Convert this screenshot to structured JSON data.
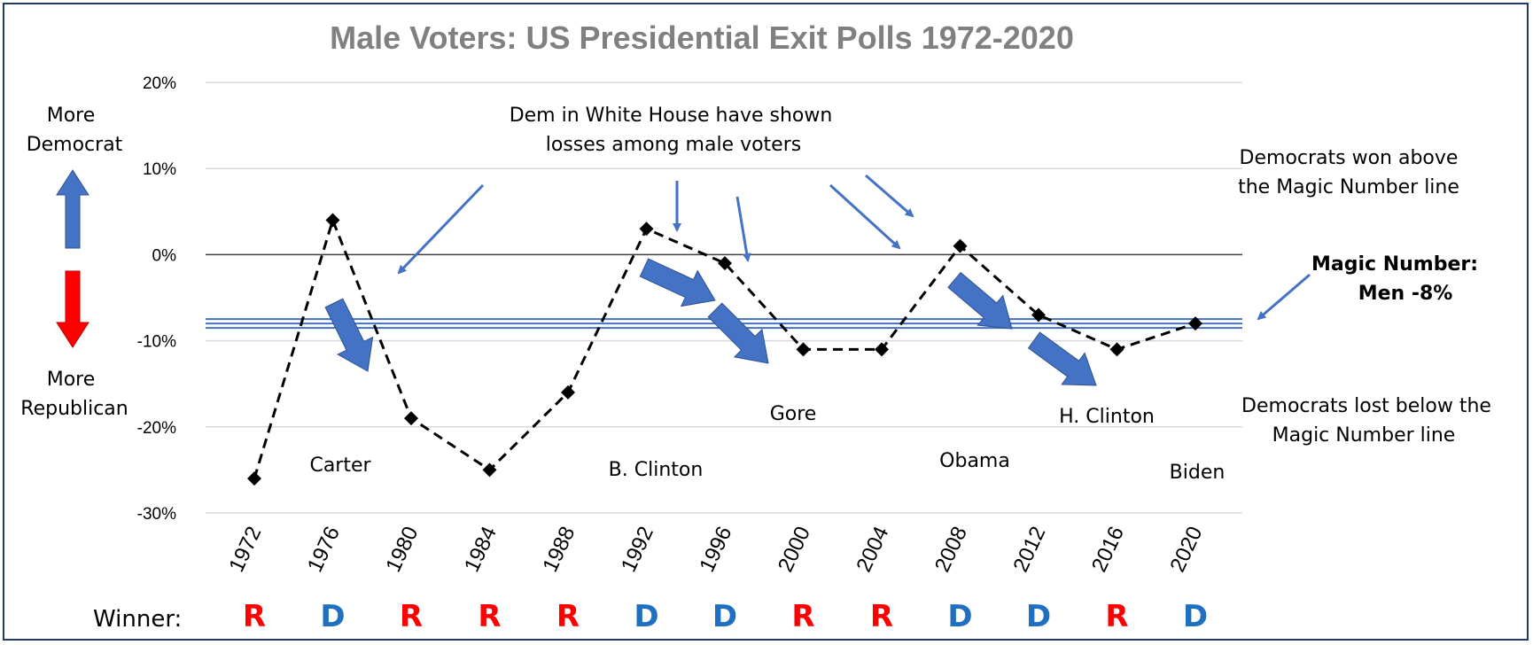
{
  "chart_data": {
    "type": "line",
    "title": "Male Voters: US Presidential Exit Polls 1972-2020",
    "categories": [
      "1972",
      "1976",
      "1980",
      "1984",
      "1988",
      "1992",
      "1996",
      "2000",
      "2004",
      "2008",
      "2012",
      "2016",
      "2020"
    ],
    "series": [
      {
        "values": [
          -26,
          4,
          -19,
          -25,
          -16,
          3,
          -1,
          -11,
          -11,
          1,
          -7,
          -11,
          -8
        ]
      }
    ],
    "ylim": [
      -30,
      20
    ],
    "yticks": [
      20,
      10,
      0,
      -10,
      -20,
      -30
    ],
    "ytick_labels": [
      "20%",
      "10%",
      "0%",
      "-10%",
      "-20%",
      "-30%"
    ],
    "magic_number": -8,
    "grid": true
  },
  "annotations": {
    "more_dem": [
      "More",
      "Democrat"
    ],
    "more_rep": [
      "More",
      "Republican"
    ],
    "dem_whitehouse": [
      "Dem in White House have shown",
      "losses among male voters"
    ],
    "dem_won": [
      "Democrats won above",
      "the Magic Number line"
    ],
    "magic": [
      "Magic Number:",
      "Men -8%"
    ],
    "dem_lost": [
      "Democrats lost below the",
      "Magic Number line"
    ],
    "presidents": [
      "Carter",
      "B. Clinton",
      "Gore",
      "Obama",
      "H. Clinton",
      "Biden"
    ]
  },
  "winner_label": "Winner:",
  "winners": [
    "R",
    "D",
    "R",
    "R",
    "R",
    "D",
    "D",
    "R",
    "R",
    "D",
    "D",
    "R",
    "D"
  ],
  "colors": {
    "republican": "#ff0000",
    "democrat": "#1f70c1",
    "arrow": "#4472c4",
    "title": "#808080",
    "grid": "#d9d9d9"
  }
}
